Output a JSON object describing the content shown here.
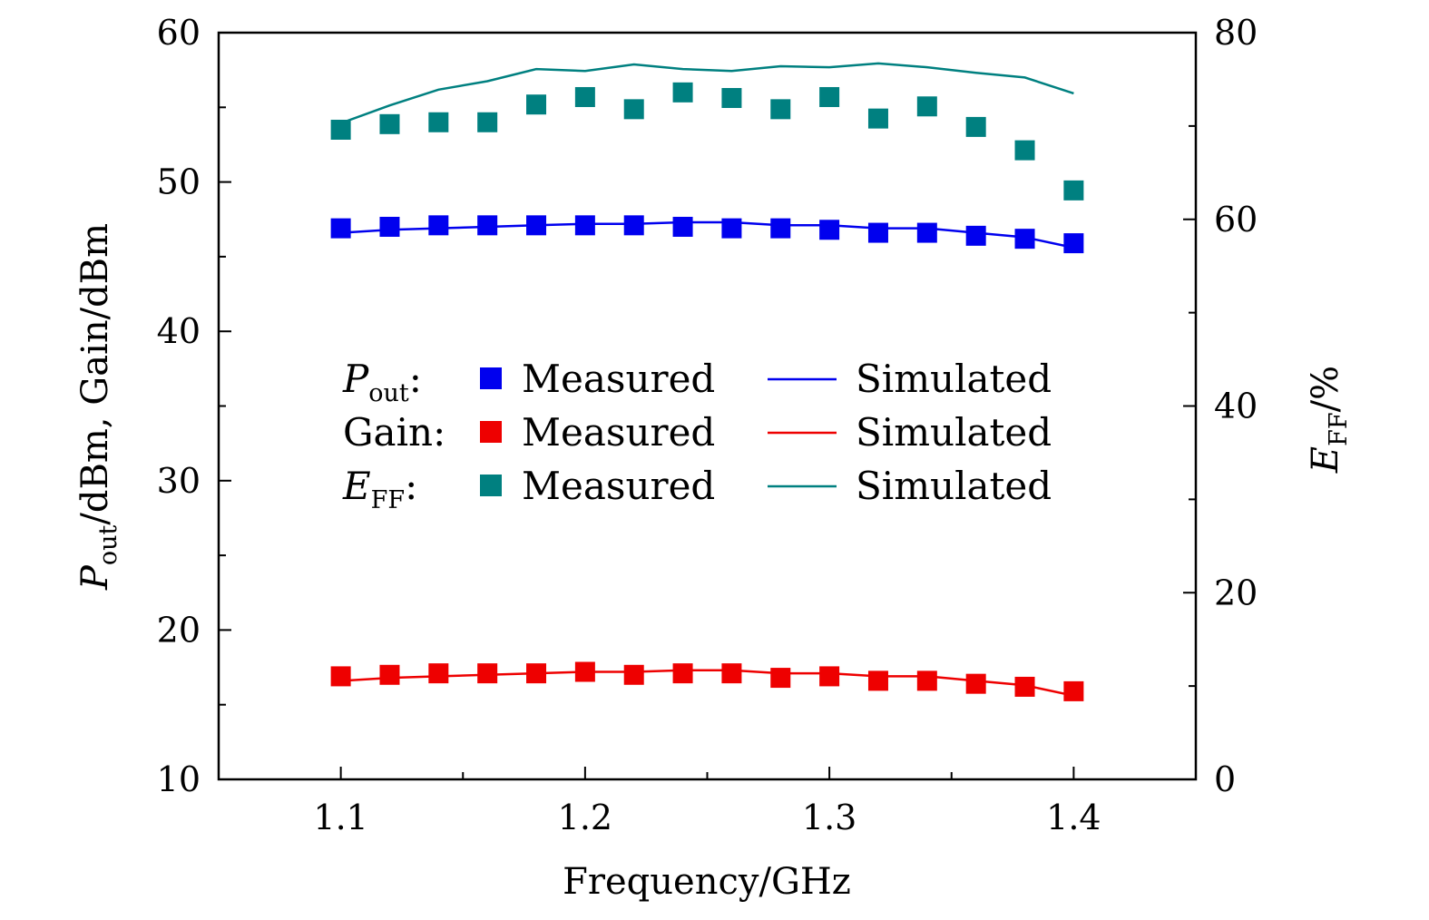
{
  "chart_data": {
    "type": "line",
    "xlabel": "Frequency/GHz",
    "ylabel_left": {
      "main": "P",
      "sub": "out",
      "rest": "/dBm, Gain/dBm"
    },
    "ylabel_right": {
      "main": "E",
      "sub": "FF",
      "rest": "/%"
    },
    "xlim": [
      1.05,
      1.45
    ],
    "ylim_left": [
      10,
      60
    ],
    "ylim_right": [
      0,
      80
    ],
    "x_ticks": [
      1.1,
      1.2,
      1.3,
      1.4
    ],
    "x_tick_labels": [
      "1.1",
      "1.2",
      "1.3",
      "1.4"
    ],
    "y_left_ticks": [
      10,
      20,
      30,
      40,
      50,
      60
    ],
    "y_left_tick_labels": [
      "10",
      "20",
      "30",
      "40",
      "50",
      "60"
    ],
    "y_right_ticks": [
      0,
      20,
      40,
      60,
      80
    ],
    "y_right_tick_labels": [
      "0",
      "20",
      "40",
      "60",
      "80"
    ],
    "grid": false,
    "legend_position": "center",
    "x": [
      1.1,
      1.12,
      1.14,
      1.16,
      1.18,
      1.2,
      1.22,
      1.24,
      1.26,
      1.28,
      1.3,
      1.32,
      1.34,
      1.36,
      1.38,
      1.4
    ],
    "series": [
      {
        "name": "Pout Measured",
        "axis": "left",
        "style": "marker",
        "color": "#0000ee",
        "values": [
          46.9,
          47.0,
          47.1,
          47.1,
          47.1,
          47.1,
          47.1,
          47.0,
          46.9,
          46.9,
          46.8,
          46.6,
          46.6,
          46.4,
          46.2,
          45.9
        ]
      },
      {
        "name": "Pout Simulated",
        "axis": "left",
        "style": "line",
        "color": "#0000ee",
        "values": [
          46.6,
          46.8,
          46.9,
          47.0,
          47.1,
          47.2,
          47.2,
          47.3,
          47.3,
          47.1,
          47.1,
          46.9,
          46.9,
          46.6,
          46.3,
          45.6
        ]
      },
      {
        "name": "Gain Measured",
        "axis": "left",
        "style": "marker",
        "color": "#ee0000",
        "values": [
          16.9,
          17.0,
          17.1,
          17.1,
          17.1,
          17.2,
          17.0,
          17.1,
          17.1,
          16.8,
          16.9,
          16.6,
          16.6,
          16.4,
          16.2,
          15.9
        ]
      },
      {
        "name": "Gain Simulated",
        "axis": "left",
        "style": "line",
        "color": "#ee0000",
        "values": [
          16.6,
          16.8,
          16.9,
          17.0,
          17.1,
          17.2,
          17.2,
          17.3,
          17.3,
          17.1,
          17.1,
          16.9,
          16.9,
          16.6,
          16.3,
          15.6
        ]
      },
      {
        "name": "EFF Measured",
        "axis": "right",
        "style": "marker",
        "color": "#008080",
        "values": [
          69.6,
          70.2,
          70.4,
          70.4,
          72.3,
          73.1,
          71.8,
          73.6,
          73.0,
          71.8,
          73.1,
          70.8,
          72.1,
          69.9,
          67.4,
          63.1
        ]
      },
      {
        "name": "EFF Simulated",
        "axis": "right",
        "style": "line",
        "color": "#008080",
        "values": [
          70.3,
          72.2,
          73.9,
          74.8,
          76.1,
          75.9,
          76.6,
          76.1,
          75.9,
          76.4,
          76.3,
          76.7,
          76.3,
          75.7,
          75.2,
          73.5
        ]
      }
    ],
    "legend": {
      "rows": [
        {
          "label_main": "P",
          "label_sub": "out",
          "label_suffix": ":",
          "italic": true,
          "color": "#0000ee",
          "measured": "Measured",
          "simulated": "Simulated"
        },
        {
          "label_main": "Gain",
          "label_sub": "",
          "label_suffix": ":",
          "italic": false,
          "color": "#ee0000",
          "measured": "Measured",
          "simulated": "Simulated"
        },
        {
          "label_main": "E",
          "label_sub": "FF",
          "label_suffix": ":",
          "italic": true,
          "color": "#008080",
          "measured": "Measured",
          "simulated": "Simulated"
        }
      ]
    }
  }
}
